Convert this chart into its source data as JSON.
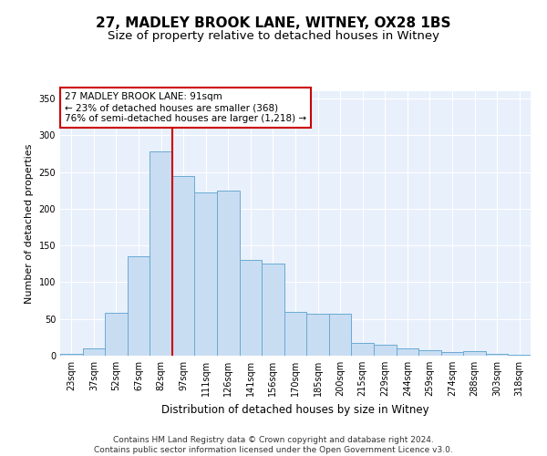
{
  "title": "27, MADLEY BROOK LANE, WITNEY, OX28 1BS",
  "subtitle": "Size of property relative to detached houses in Witney",
  "xlabel": "Distribution of detached houses by size in Witney",
  "ylabel": "Number of detached properties",
  "categories": [
    "23sqm",
    "37sqm",
    "52sqm",
    "67sqm",
    "82sqm",
    "97sqm",
    "111sqm",
    "126sqm",
    "141sqm",
    "156sqm",
    "170sqm",
    "185sqm",
    "200sqm",
    "215sqm",
    "229sqm",
    "244sqm",
    "259sqm",
    "274sqm",
    "288sqm",
    "303sqm",
    "318sqm"
  ],
  "values": [
    2,
    10,
    58,
    135,
    278,
    245,
    222,
    225,
    130,
    125,
    60,
    57,
    57,
    18,
    15,
    10,
    8,
    5,
    6,
    2,
    1
  ],
  "bar_color": "#c9ddf2",
  "bar_edge_color": "#6aaad4",
  "vline_x": 4.5,
  "vline_color": "#cc0000",
  "annotation_text": "27 MADLEY BROOK LANE: 91sqm\n← 23% of detached houses are smaller (368)\n76% of semi-detached houses are larger (1,218) →",
  "annotation_box_color": "#ffffff",
  "annotation_box_edge": "#cc0000",
  "ylim": [
    0,
    360
  ],
  "yticks": [
    0,
    50,
    100,
    150,
    200,
    250,
    300,
    350
  ],
  "bg_color": "#e8f0fb",
  "footer": "Contains HM Land Registry data © Crown copyright and database right 2024.\nContains public sector information licensed under the Open Government Licence v3.0.",
  "title_fontsize": 11,
  "subtitle_fontsize": 9.5,
  "xlabel_fontsize": 8.5,
  "ylabel_fontsize": 8,
  "tick_fontsize": 7,
  "annotation_fontsize": 7.5,
  "footer_fontsize": 6.5
}
